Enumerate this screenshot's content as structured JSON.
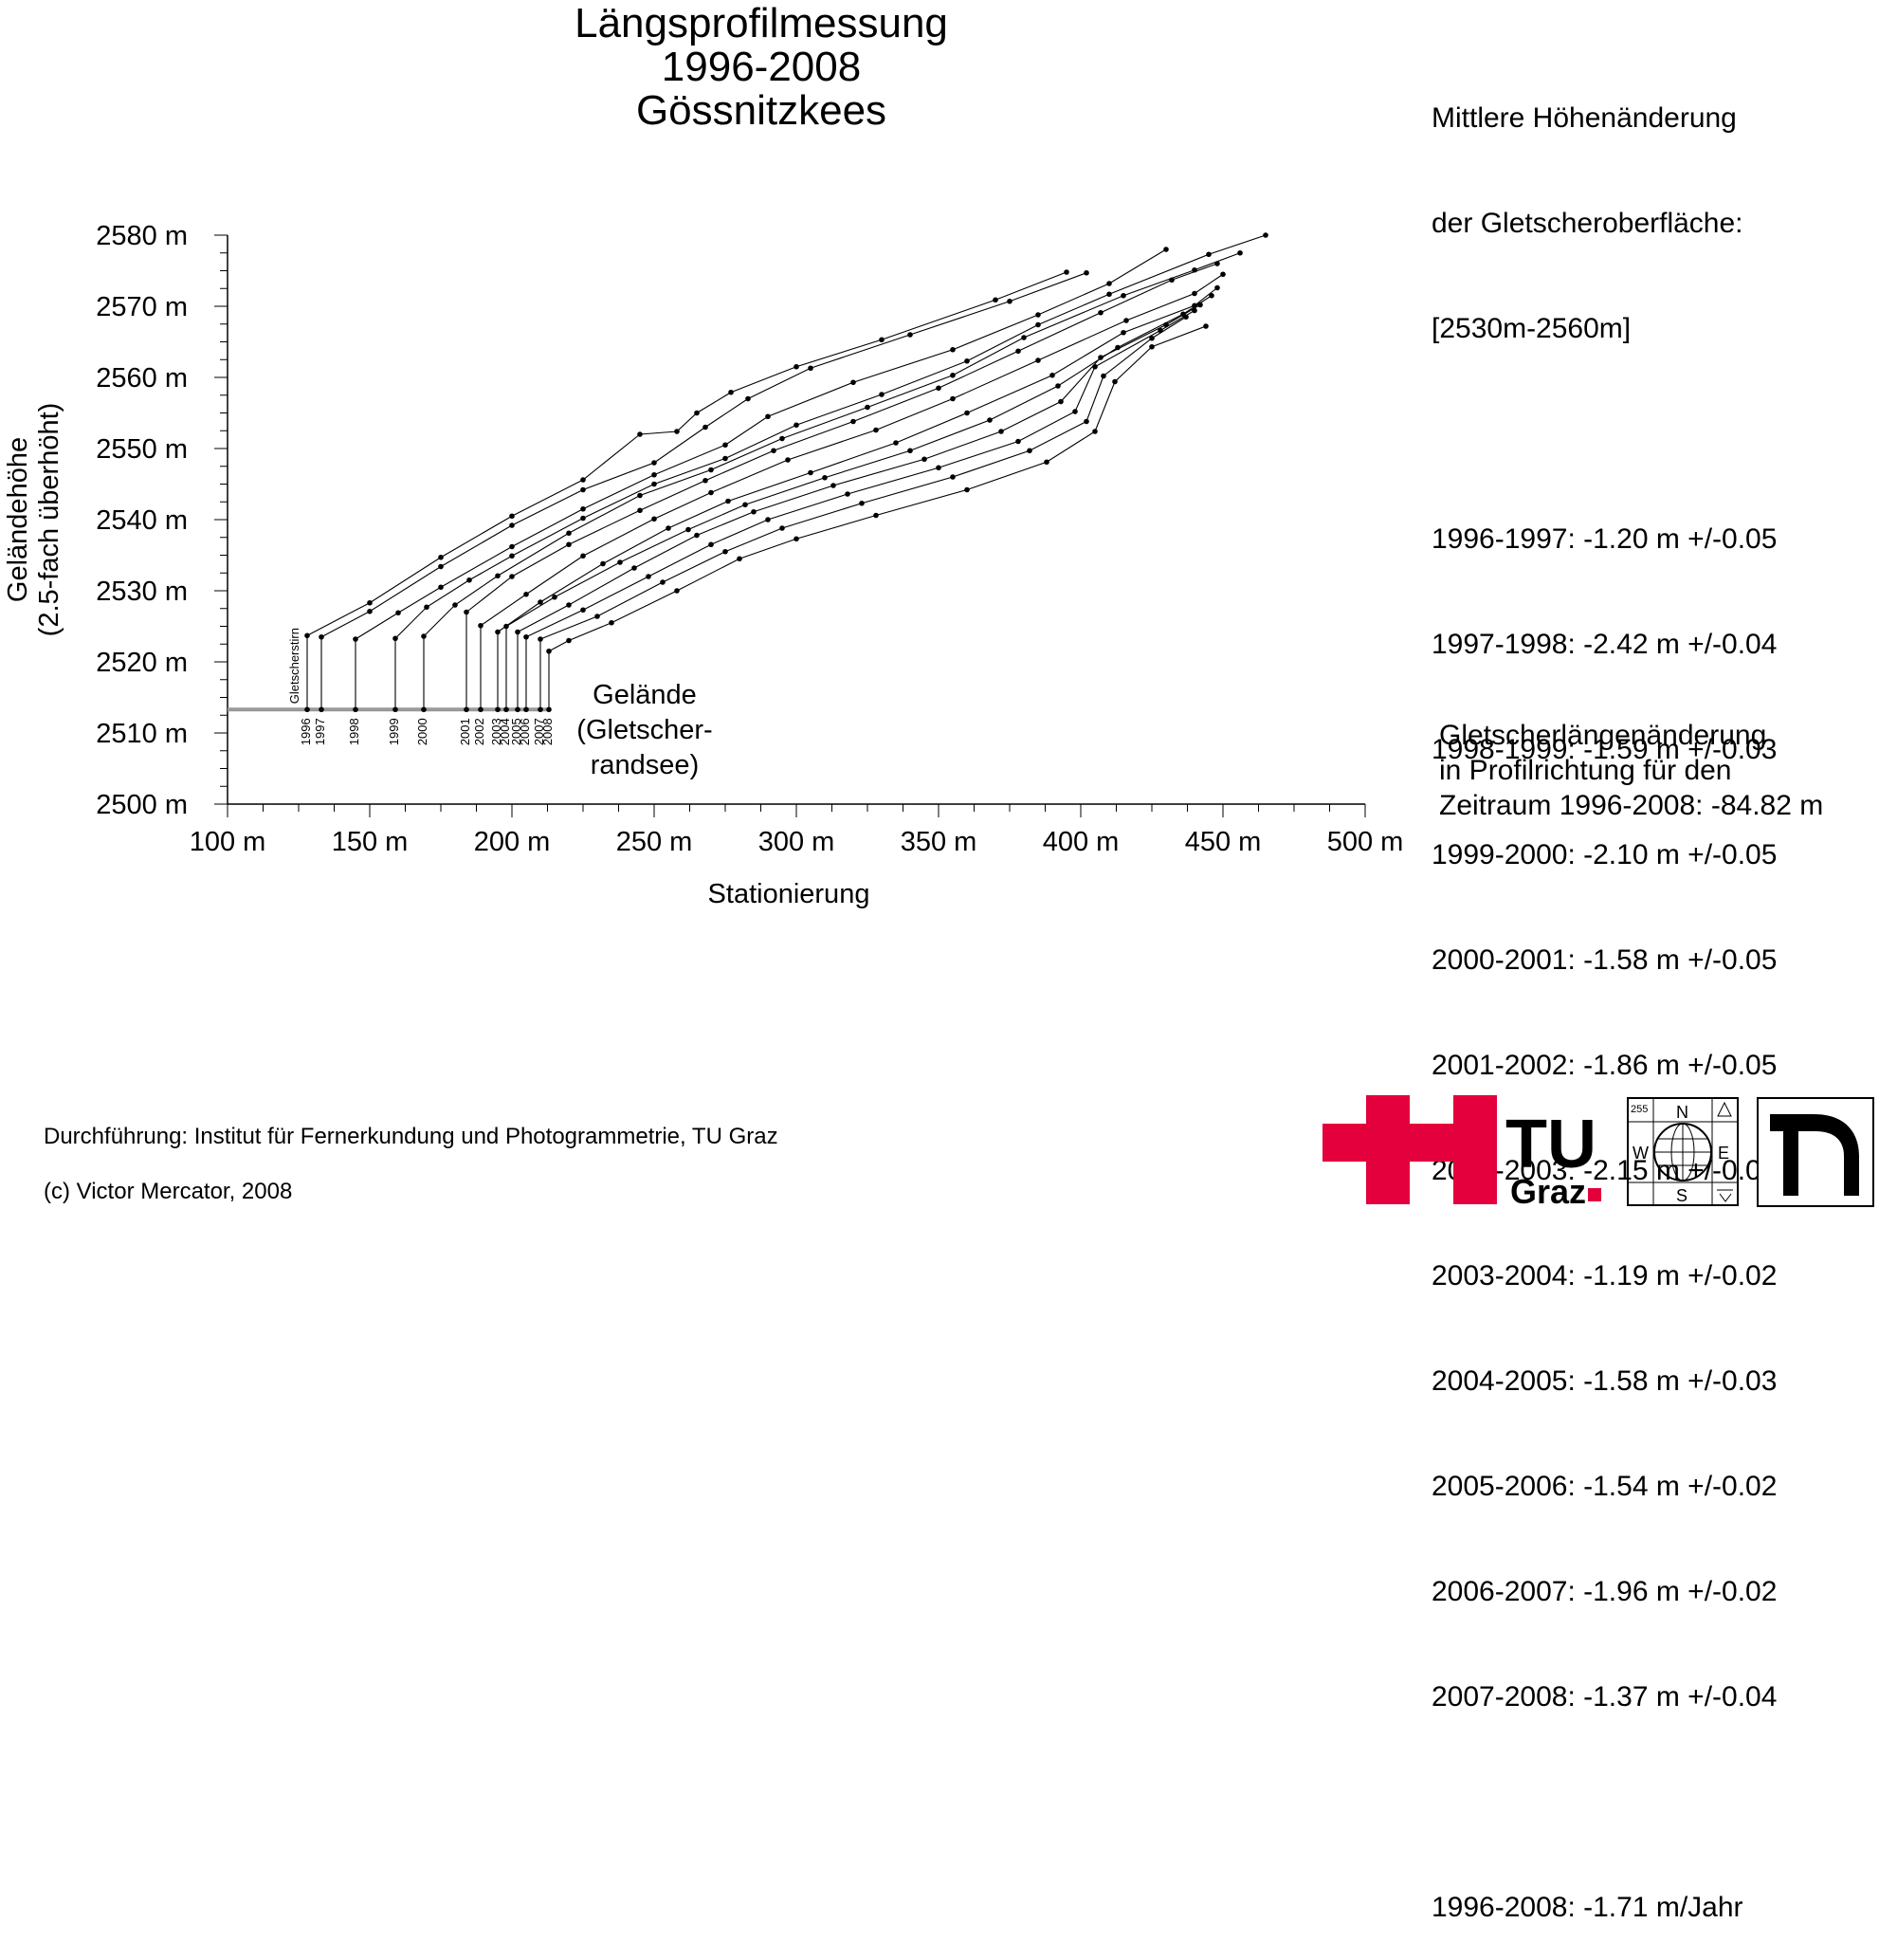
{
  "title": [
    "Längsprofilmessung",
    "1996-2008",
    "Gössnitzkees"
  ],
  "stats": {
    "header": [
      "Mittlere Höhenänderung",
      "der Gletscheroberfläche:",
      "[2530m-2560m]"
    ],
    "changes": [
      "1996-1997: -1.20 m +/-0.05",
      "1997-1998: -2.42 m +/-0.04",
      "1998-1999: -1.59 m +/-0.03",
      "1999-2000: -2.10 m +/-0.05",
      "2000-2001: -1.58 m +/-0.05",
      "2001-2002: -1.86 m +/-0.05",
      "2002-2003: -2.15 m +/-0.03",
      "2003-2004: -1.19 m +/-0.02",
      "2004-2005: -1.58 m +/-0.03",
      "2005-2006: -1.54 m +/-0.02",
      "2006-2007: -1.96 m +/-0.02",
      "2007-2008: -1.37 m +/-0.04"
    ],
    "average": "1996-2008: -1.71 m/Jahr"
  },
  "length_change": [
    "Gletscherlängenänderung",
    "in Profilrichtung für den",
    "Zeitraum 1996-2008: -84.82 m"
  ],
  "credits": {
    "line1": "Durchführung: Institut für Fernerkundung und Photogrammetrie, TU Graz",
    "line2": "(c) Victor Mercator, 2008"
  },
  "logos": {
    "tu_text": "TU",
    "graz_text": "Graz",
    "tu_color": "#e4003d",
    "globe": {
      "n": "N",
      "s": "S",
      "w": "W",
      "e": "E",
      "num": "255"
    }
  },
  "chart_data": {
    "type": "line",
    "xlabel": "Stationierung",
    "ylabel": [
      "Geländehöhe",
      "(2.5-fach überhöht)"
    ],
    "xlim": [
      100,
      500
    ],
    "ylim": [
      2500,
      2580
    ],
    "x_ticks": [
      "100 m",
      "150 m",
      "200 m",
      "250 m",
      "300 m",
      "350 m",
      "400 m",
      "450 m",
      "500 m"
    ],
    "y_ticks": [
      "2500 m",
      "2510 m",
      "2520 m",
      "2530 m",
      "2540 m",
      "2550 m",
      "2560 m",
      "2570 m",
      "2580 m"
    ],
    "terrain": {
      "label": [
        "Gelände",
        "(Gletscher-",
        "randsee)"
      ],
      "y": 2513.3,
      "x_start": 100,
      "x_end": 213,
      "color": "#999999"
    },
    "front_label": "Gletscherstirn",
    "series": [
      {
        "name": "1996",
        "front": 128,
        "points": [
          [
            128,
            2523.7
          ],
          [
            150,
            2528.3
          ],
          [
            175,
            2534.7
          ],
          [
            200,
            2540.5
          ],
          [
            225,
            2545.6
          ],
          [
            245,
            2552
          ],
          [
            258,
            2552.4
          ],
          [
            265,
            2555
          ],
          [
            277,
            2557.9
          ],
          [
            300,
            2561.5
          ],
          [
            330,
            2565.3
          ],
          [
            370,
            2570.9
          ],
          [
            395,
            2574.8
          ]
        ]
      },
      {
        "name": "1997",
        "front": 133,
        "points": [
          [
            133,
            2523.5
          ],
          [
            150,
            2527.1
          ],
          [
            175,
            2533.4
          ],
          [
            200,
            2539.2
          ],
          [
            225,
            2544.2
          ],
          [
            250,
            2548
          ],
          [
            268,
            2553
          ],
          [
            283,
            2557
          ],
          [
            305,
            2561.3
          ],
          [
            340,
            2566
          ],
          [
            375,
            2570.7
          ],
          [
            402,
            2574.7
          ]
        ]
      },
      {
        "name": "1998",
        "front": 145,
        "points": [
          [
            145,
            2523.2
          ],
          [
            160,
            2526.9
          ],
          [
            175,
            2530.5
          ],
          [
            200,
            2536.2
          ],
          [
            225,
            2541.5
          ],
          [
            250,
            2546.3
          ],
          [
            275,
            2550.5
          ],
          [
            290,
            2554.5
          ],
          [
            320,
            2559.3
          ],
          [
            355,
            2563.9
          ],
          [
            385,
            2568.8
          ],
          [
            410,
            2573.2
          ],
          [
            430,
            2578
          ]
        ]
      },
      {
        "name": "1999",
        "front": 159,
        "points": [
          [
            159,
            2523.3
          ],
          [
            170,
            2527.7
          ],
          [
            185,
            2531.5
          ],
          [
            200,
            2534.9
          ],
          [
            225,
            2540.2
          ],
          [
            250,
            2545
          ],
          [
            275,
            2548.6
          ],
          [
            300,
            2553.3
          ],
          [
            330,
            2557.6
          ],
          [
            360,
            2562.3
          ],
          [
            385,
            2567.4
          ],
          [
            410,
            2571.7
          ],
          [
            445,
            2577.3
          ],
          [
            465,
            2580
          ]
        ]
      },
      {
        "name": "2000",
        "front": 169,
        "points": [
          [
            169,
            2523.6
          ],
          [
            180,
            2528
          ],
          [
            195,
            2532.1
          ],
          [
            220,
            2538.1
          ],
          [
            245,
            2543.4
          ],
          [
            270,
            2547
          ],
          [
            295,
            2551.4
          ],
          [
            325,
            2555.8
          ],
          [
            355,
            2560.3
          ],
          [
            380,
            2565.6
          ],
          [
            415,
            2571.5
          ],
          [
            440,
            2575.1
          ],
          [
            456,
            2577.5
          ]
        ]
      },
      {
        "name": "2001",
        "front": 184,
        "points": [
          [
            184,
            2527
          ],
          [
            200,
            2532
          ],
          [
            220,
            2536.5
          ],
          [
            245,
            2541.3
          ],
          [
            268,
            2545.5
          ],
          [
            292,
            2549.7
          ],
          [
            320,
            2553.8
          ],
          [
            350,
            2558.5
          ],
          [
            378,
            2563.7
          ],
          [
            407,
            2569.1
          ],
          [
            432,
            2573.7
          ],
          [
            448,
            2576
          ]
        ]
      },
      {
        "name": "2002",
        "front": 189,
        "points": [
          [
            189,
            2525.1
          ],
          [
            205,
            2529.5
          ],
          [
            225,
            2534.9
          ],
          [
            250,
            2540.1
          ],
          [
            270,
            2543.8
          ],
          [
            297,
            2548.4
          ],
          [
            328,
            2552.6
          ],
          [
            355,
            2557
          ],
          [
            385,
            2562.4
          ],
          [
            416,
            2568
          ],
          [
            440,
            2571.8
          ],
          [
            450,
            2574.5
          ]
        ]
      },
      {
        "name": "2003",
        "front": 195,
        "points": [
          [
            195,
            2524.2
          ],
          [
            210,
            2528.4
          ],
          [
            232,
            2533.8
          ],
          [
            255,
            2538.8
          ],
          [
            276,
            2542.6
          ],
          [
            305,
            2546.6
          ],
          [
            335,
            2550.8
          ],
          [
            360,
            2555
          ],
          [
            390,
            2560.3
          ],
          [
            415,
            2566.3
          ],
          [
            440,
            2570.1
          ],
          [
            448,
            2572.6
          ]
        ]
      },
      {
        "name": "2004",
        "front": 198,
        "points": [
          [
            198,
            2525
          ],
          [
            215,
            2529.1
          ],
          [
            238,
            2534
          ],
          [
            262,
            2538.6
          ],
          [
            282,
            2542.1
          ],
          [
            310,
            2545.9
          ],
          [
            340,
            2549.7
          ],
          [
            368,
            2554
          ],
          [
            392,
            2558.8
          ],
          [
            413,
            2564.2
          ],
          [
            436,
            2568.9
          ],
          [
            446,
            2571.5
          ]
        ]
      },
      {
        "name": "2005",
        "front": 202,
        "points": [
          [
            202,
            2524.2
          ],
          [
            220,
            2528
          ],
          [
            243,
            2533.2
          ],
          [
            265,
            2537.8
          ],
          [
            285,
            2541.1
          ],
          [
            313,
            2544.8
          ],
          [
            345,
            2548.5
          ],
          [
            372,
            2552.4
          ],
          [
            393,
            2556.6
          ],
          [
            407,
            2562.8
          ],
          [
            430,
            2567.4
          ],
          [
            442,
            2570.2
          ]
        ]
      },
      {
        "name": "2006",
        "front": 205,
        "points": [
          [
            205,
            2523.5
          ],
          [
            225,
            2527.3
          ],
          [
            248,
            2532
          ],
          [
            270,
            2536.5
          ],
          [
            290,
            2540
          ],
          [
            318,
            2543.6
          ],
          [
            350,
            2547.3
          ],
          [
            378,
            2551
          ],
          [
            398,
            2555.2
          ],
          [
            405,
            2561.5
          ],
          [
            428,
            2566.6
          ],
          [
            440,
            2569.4
          ]
        ]
      },
      {
        "name": "2007",
        "front": 210,
        "points": [
          [
            210,
            2523.2
          ],
          [
            230,
            2526.4
          ],
          [
            253,
            2531.2
          ],
          [
            275,
            2535.5
          ],
          [
            295,
            2538.8
          ],
          [
            323,
            2542.3
          ],
          [
            355,
            2546
          ],
          [
            382,
            2549.7
          ],
          [
            402,
            2553.8
          ],
          [
            408,
            2560.2
          ],
          [
            425,
            2565.5
          ],
          [
            437,
            2568.5
          ]
        ]
      },
      {
        "name": "2008",
        "front": 213,
        "points": [
          [
            213,
            2521.5
          ],
          [
            220,
            2523
          ],
          [
            235,
            2525.5
          ],
          [
            258,
            2530
          ],
          [
            280,
            2534.5
          ],
          [
            300,
            2537.3
          ],
          [
            328,
            2540.6
          ],
          [
            360,
            2544.2
          ],
          [
            388,
            2548.1
          ],
          [
            405,
            2552.4
          ],
          [
            412,
            2559.4
          ],
          [
            425,
            2564.3
          ],
          [
            444,
            2567.2
          ]
        ]
      }
    ]
  }
}
